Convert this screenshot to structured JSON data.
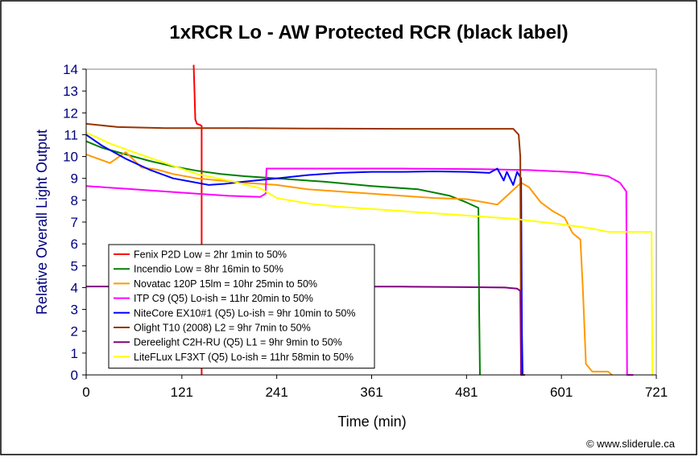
{
  "chart_data": {
    "type": "line",
    "title": "1xRCR Lo - AW Protected RCR (black label)",
    "xlabel": "Time (min)",
    "ylabel": "Relative Overall Light Output",
    "xlim": [
      0,
      721
    ],
    "ylim": [
      0,
      14
    ],
    "x_ticks": [
      "0",
      "121",
      "241",
      "361",
      "481",
      "601",
      "721"
    ],
    "y_ticks": [
      "0",
      "1",
      "2",
      "3",
      "4",
      "5",
      "6",
      "7",
      "8",
      "9",
      "10",
      "11",
      "12",
      "13",
      "14"
    ],
    "grid": false,
    "legend_position": "bottom-left",
    "credit": "© www.sliderule.ca",
    "series": [
      {
        "name": "Fenix P2D Low = 2hr 1min to 50%",
        "color": "#ff0000",
        "points": [
          [
            136,
            14.2
          ],
          [
            137,
            13.0
          ],
          [
            138,
            11.7
          ],
          [
            140,
            11.5
          ],
          [
            144,
            11.45
          ],
          [
            146,
            11.4
          ],
          [
            146,
            0
          ]
        ]
      },
      {
        "name": "Incendio Low = 8hr 16min to 50%",
        "color": "#008000",
        "points": [
          [
            0,
            10.7
          ],
          [
            20,
            10.4
          ],
          [
            50,
            10.1
          ],
          [
            80,
            9.8
          ],
          [
            110,
            9.55
          ],
          [
            140,
            9.35
          ],
          [
            170,
            9.2
          ],
          [
            200,
            9.1
          ],
          [
            241,
            9.0
          ],
          [
            300,
            8.85
          ],
          [
            361,
            8.65
          ],
          [
            420,
            8.5
          ],
          [
            460,
            8.2
          ],
          [
            481,
            7.9
          ],
          [
            496,
            7.65
          ],
          [
            497,
            3.0
          ],
          [
            498,
            0
          ]
        ]
      },
      {
        "name": "Novatac 120P 15lm = 10hr 25min to 50%",
        "color": "#ff9900",
        "points": [
          [
            0,
            10.1
          ],
          [
            15,
            9.9
          ],
          [
            30,
            9.7
          ],
          [
            50,
            10.2
          ],
          [
            70,
            9.5
          ],
          [
            90,
            9.4
          ],
          [
            110,
            9.2
          ],
          [
            140,
            9.0
          ],
          [
            170,
            8.9
          ],
          [
            200,
            8.8
          ],
          [
            241,
            8.7
          ],
          [
            280,
            8.5
          ],
          [
            320,
            8.4
          ],
          [
            361,
            8.3
          ],
          [
            400,
            8.2
          ],
          [
            440,
            8.1
          ],
          [
            481,
            8.05
          ],
          [
            520,
            7.8
          ],
          [
            550,
            8.8
          ],
          [
            560,
            8.6
          ],
          [
            575,
            7.9
          ],
          [
            590,
            7.5
          ],
          [
            605,
            7.2
          ],
          [
            615,
            6.5
          ],
          [
            625,
            6.2
          ],
          [
            628,
            4.0
          ],
          [
            632,
            0.5
          ],
          [
            640,
            0.15
          ],
          [
            660,
            0.15
          ],
          [
            665,
            0
          ]
        ]
      },
      {
        "name": "ITP C9 (Q5) Lo-ish = 11hr 20min to 50%",
        "color": "#ff00ff",
        "points": [
          [
            0,
            8.65
          ],
          [
            60,
            8.5
          ],
          [
            120,
            8.35
          ],
          [
            180,
            8.2
          ],
          [
            220,
            8.15
          ],
          [
            227,
            8.3
          ],
          [
            228,
            9.45
          ],
          [
            300,
            9.45
          ],
          [
            400,
            9.45
          ],
          [
            500,
            9.42
          ],
          [
            560,
            9.38
          ],
          [
            620,
            9.28
          ],
          [
            660,
            9.1
          ],
          [
            675,
            8.8
          ],
          [
            683,
            8.4
          ],
          [
            684,
            0
          ],
          [
            692,
            0
          ]
        ]
      },
      {
        "name": "NiteCore EX10#1 (Q5) Lo-ish = 9hr 10min to 50%",
        "color": "#0000ff",
        "points": [
          [
            0,
            11.0
          ],
          [
            20,
            10.5
          ],
          [
            50,
            9.9
          ],
          [
            80,
            9.4
          ],
          [
            110,
            9.0
          ],
          [
            140,
            8.8
          ],
          [
            155,
            8.7
          ],
          [
            175,
            8.75
          ],
          [
            200,
            8.85
          ],
          [
            241,
            9.0
          ],
          [
            280,
            9.15
          ],
          [
            320,
            9.25
          ],
          [
            361,
            9.3
          ],
          [
            400,
            9.3
          ],
          [
            440,
            9.32
          ],
          [
            481,
            9.3
          ],
          [
            510,
            9.25
          ],
          [
            520,
            9.45
          ],
          [
            528,
            8.9
          ],
          [
            532,
            9.3
          ],
          [
            540,
            8.7
          ],
          [
            545,
            9.3
          ],
          [
            550,
            9.0
          ],
          [
            551,
            2.0
          ],
          [
            552,
            0
          ]
        ]
      },
      {
        "name": "Olight T10 (2008) L2 = 9hr 7min to 50%",
        "color": "#993300",
        "points": [
          [
            0,
            11.5
          ],
          [
            40,
            11.35
          ],
          [
            100,
            11.3
          ],
          [
            200,
            11.3
          ],
          [
            300,
            11.28
          ],
          [
            400,
            11.27
          ],
          [
            500,
            11.27
          ],
          [
            540,
            11.27
          ],
          [
            547,
            11.0
          ],
          [
            549,
            10.0
          ],
          [
            550,
            0
          ],
          [
            555,
            0
          ]
        ]
      },
      {
        "name": "Dereelight C2H-RU (Q5) L1 = 9hr 9min to 50%",
        "color": "#800080",
        "points": [
          [
            0,
            4.05
          ],
          [
            100,
            4.05
          ],
          [
            200,
            4.05
          ],
          [
            300,
            4.05
          ],
          [
            400,
            4.04
          ],
          [
            481,
            4.02
          ],
          [
            530,
            4.0
          ],
          [
            545,
            3.95
          ],
          [
            549,
            3.85
          ],
          [
            550,
            0
          ],
          [
            552,
            0
          ]
        ]
      },
      {
        "name": "LiteFLux LF3XT (Q5) Lo-ish = 11hr 58min to 50%",
        "color": "#ffff00",
        "points": [
          [
            0,
            11.1
          ],
          [
            30,
            10.6
          ],
          [
            60,
            10.2
          ],
          [
            100,
            9.7
          ],
          [
            140,
            9.2
          ],
          [
            180,
            8.9
          ],
          [
            220,
            8.55
          ],
          [
            241,
            8.1
          ],
          [
            280,
            7.85
          ],
          [
            320,
            7.7
          ],
          [
            361,
            7.6
          ],
          [
            420,
            7.45
          ],
          [
            481,
            7.3
          ],
          [
            540,
            7.15
          ],
          [
            601,
            6.9
          ],
          [
            640,
            6.7
          ],
          [
            660,
            6.55
          ],
          [
            700,
            6.55
          ],
          [
            715,
            6.55
          ],
          [
            716,
            0
          ]
        ]
      }
    ]
  }
}
